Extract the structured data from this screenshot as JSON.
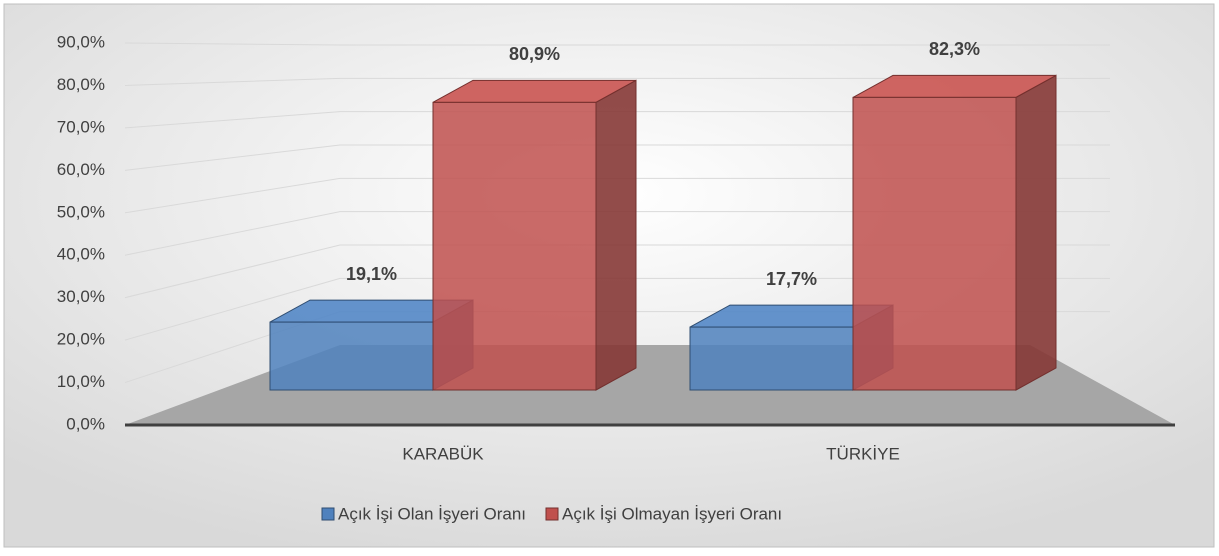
{
  "chart_data": {
    "type": "bar3d",
    "categories": [
      "KARABÜK",
      "TÜRKİYE"
    ],
    "series": [
      {
        "name": "Açık İşi Olan İşyeri Oranı",
        "color": "#4f81bd",
        "values": [
          19.1,
          17.7
        ],
        "value_labels": [
          "19,1%",
          "17,7%"
        ]
      },
      {
        "name": "Açık İşi Olmayan İşyeri Oranı",
        "color": "#c0504d",
        "values": [
          80.9,
          82.3
        ],
        "value_labels": [
          "80,9%",
          "82,3%"
        ]
      }
    ],
    "ylim": [
      0,
      90
    ],
    "yticks": [
      {
        "value": 0,
        "label": "0,0%"
      },
      {
        "value": 10,
        "label": "10,0%"
      },
      {
        "value": 20,
        "label": "20,0%"
      },
      {
        "value": 30,
        "label": "30,0%"
      },
      {
        "value": 40,
        "label": "40,0%"
      },
      {
        "value": 50,
        "label": "50,0%"
      },
      {
        "value": 60,
        "label": "60,0%"
      },
      {
        "value": 70,
        "label": "70,0%"
      },
      {
        "value": 80,
        "label": "80,0%"
      },
      {
        "value": 90,
        "label": "90,0%"
      }
    ],
    "grid": true,
    "legend": "bottom"
  }
}
